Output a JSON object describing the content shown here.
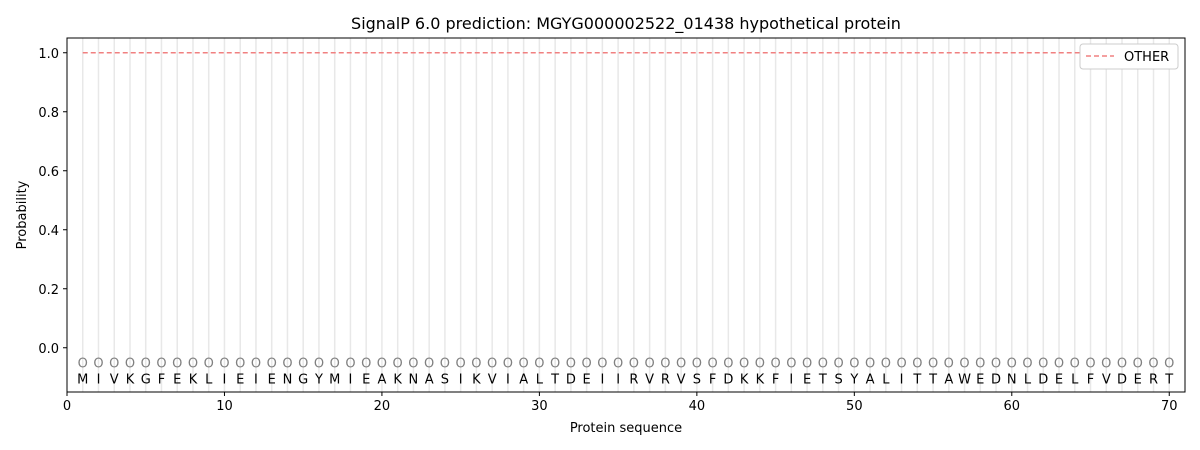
{
  "chart_data": {
    "type": "line",
    "title": "SignalP 6.0 prediction: MGYG000002522_01438 hypothetical protein",
    "xlabel": "Protein sequence",
    "ylabel": "Probability",
    "xlim": [
      0,
      71
    ],
    "ylim": [
      -0.15,
      1.05
    ],
    "xticks": [
      0,
      10,
      20,
      30,
      40,
      50,
      60,
      70
    ],
    "yticks": [
      0.0,
      0.2,
      0.4,
      0.6,
      0.8,
      1.0
    ],
    "ytick_labels": [
      "0.0",
      "0.2",
      "0.4",
      "0.6",
      "0.8",
      "1.0"
    ],
    "grid": "vertical lines at each residue",
    "legend_position": "top-right",
    "sequence": [
      "M",
      "I",
      "V",
      "K",
      "G",
      "F",
      "E",
      "K",
      "L",
      "I",
      "E",
      "I",
      "E",
      "N",
      "G",
      "Y",
      "M",
      "I",
      "E",
      "A",
      "K",
      "N",
      "A",
      "S",
      "I",
      "K",
      "V",
      "I",
      "A",
      "L",
      "T",
      "D",
      "E",
      "I",
      "I",
      "R",
      "V",
      "R",
      "V",
      "S",
      "F",
      "D",
      "K",
      "K",
      "F",
      "I",
      "E",
      "T",
      "S",
      "Y",
      "A",
      "L",
      "I",
      "T",
      "T",
      "A",
      "W",
      "E",
      "D",
      "N",
      "L",
      "D",
      "E",
      "L",
      "F",
      "V",
      "D",
      "E",
      "R",
      "T"
    ],
    "predicted_label": "O",
    "series": [
      {
        "name": "OTHER",
        "color": "#f08080",
        "style": "dashed",
        "x_range": [
          1,
          70
        ],
        "value": 1.0
      }
    ]
  }
}
